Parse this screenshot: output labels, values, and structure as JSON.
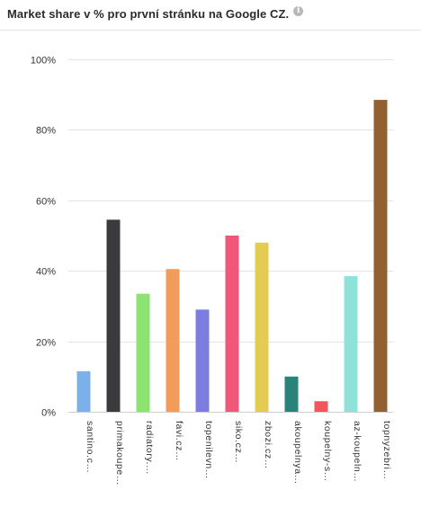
{
  "header": {
    "title": "Market share v % pro první stránku na Google CZ.",
    "info_icon": "info-icon"
  },
  "chart_data": {
    "type": "bar",
    "categories": [
      "santino.c…",
      "primakoupe…",
      "radiatory.…",
      "favi.cz…",
      "topenilevn…",
      "siko.cz…",
      "zbozi.cz…",
      "akoupelnya…",
      "koupelny-s…",
      "az-koupeln…",
      "topnyzebri…"
    ],
    "values": [
      11.5,
      54.5,
      33.5,
      40.5,
      29,
      50,
      48,
      10,
      3,
      38.5,
      88.5
    ],
    "colors": [
      "#7cb0e8",
      "#3b3b3d",
      "#8de371",
      "#f19c5c",
      "#7d7ddf",
      "#f05778",
      "#e4cc53",
      "#2a8378",
      "#f2565b",
      "#8ee2d8",
      "#93612f"
    ],
    "y_ticks": [
      "0%",
      "20%",
      "40%",
      "60%",
      "80%",
      "100%"
    ],
    "ylim": [
      0,
      100
    ],
    "grid": true,
    "legend": "none"
  }
}
